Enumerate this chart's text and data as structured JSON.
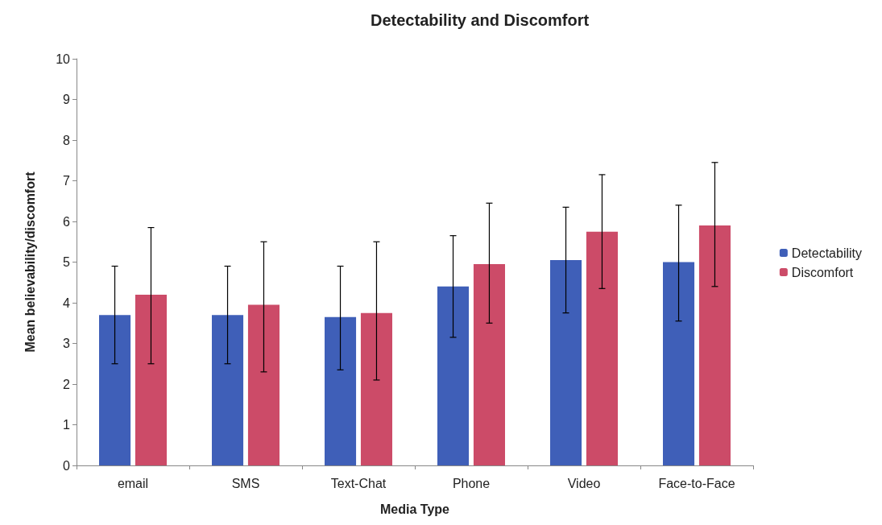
{
  "chart_data": {
    "type": "bar",
    "title": "Detectability and Discomfort",
    "xlabel": "Media Type",
    "ylabel": "Mean believability/discomfort",
    "categories": [
      "email",
      "SMS",
      "Text-Chat",
      "Phone",
      "Video",
      "Face-to-Face"
    ],
    "series": [
      {
        "name": "Detectability",
        "color": "#3f5fb8",
        "values": [
          3.7,
          3.7,
          3.65,
          4.4,
          5.05,
          5.0
        ],
        "errors": [
          [
            2.5,
            4.9
          ],
          [
            2.5,
            4.9
          ],
          [
            2.35,
            4.9
          ],
          [
            3.15,
            5.65
          ],
          [
            3.75,
            6.35
          ],
          [
            3.55,
            6.4
          ]
        ]
      },
      {
        "name": "Discomfort",
        "color": "#cc4b68",
        "values": [
          4.2,
          3.95,
          3.75,
          4.95,
          5.75,
          5.9
        ],
        "errors": [
          [
            2.5,
            5.85
          ],
          [
            2.3,
            5.5
          ],
          [
            2.1,
            5.5
          ],
          [
            3.5,
            6.45
          ],
          [
            4.35,
            7.15
          ],
          [
            4.4,
            7.45
          ]
        ]
      }
    ],
    "ylim": [
      0,
      10
    ],
    "yticks": [
      0,
      1,
      2,
      3,
      4,
      5,
      6,
      7,
      8,
      9,
      10
    ],
    "grid": false,
    "legend": "right"
  }
}
